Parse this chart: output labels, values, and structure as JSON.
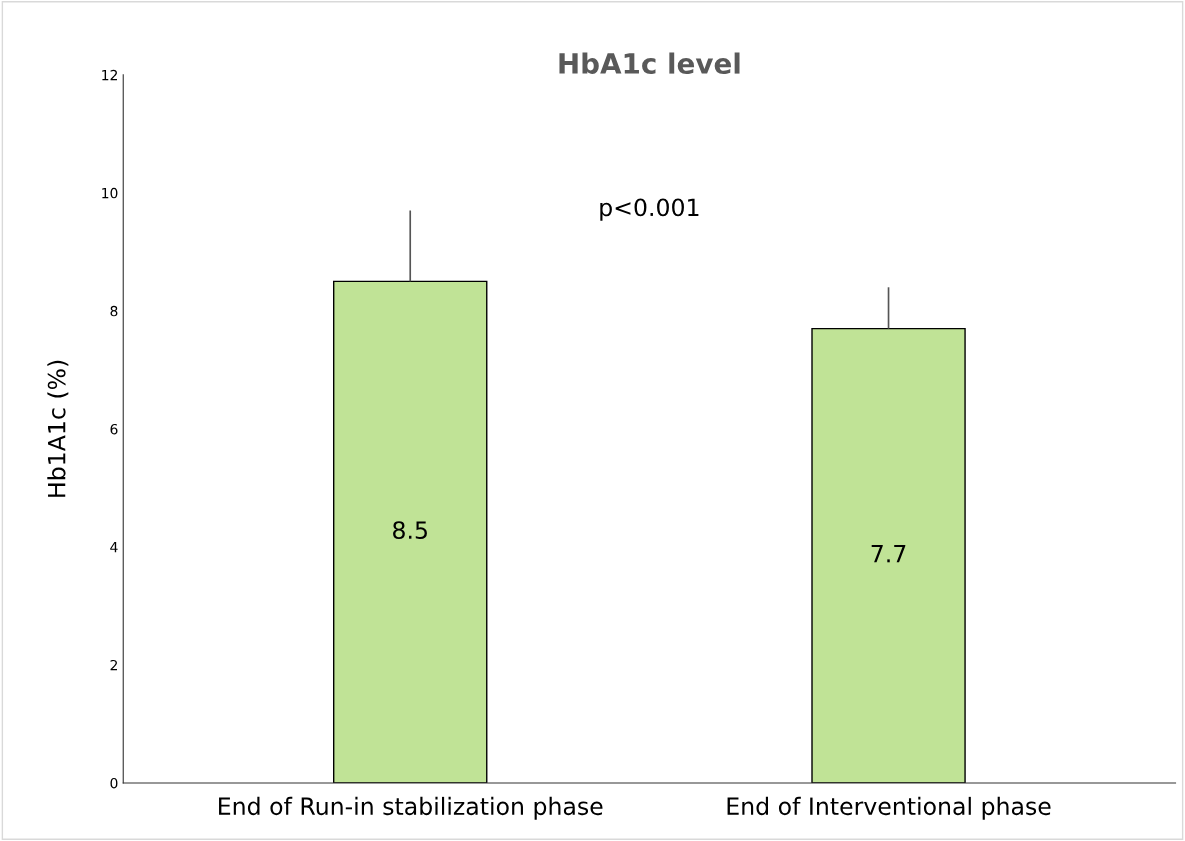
{
  "chart_data": {
    "type": "bar",
    "title": "HbA1c level",
    "ylabel": "Hb1A1c (%)",
    "categories": [
      "End of Run-in stabilization phase",
      "End of Interventional phase"
    ],
    "values": [
      8.5,
      7.7
    ],
    "color": "#c0e396",
    "errors": [
      [
        8.5,
        9.7
      ],
      [
        7.7,
        8.4
      ]
    ],
    "ylim": [
      0,
      12
    ],
    "yticks": [
      0,
      2,
      4,
      6,
      8,
      10,
      12
    ],
    "data_labels": true,
    "grid": false,
    "annotations": [
      "p<0.001"
    ]
  }
}
